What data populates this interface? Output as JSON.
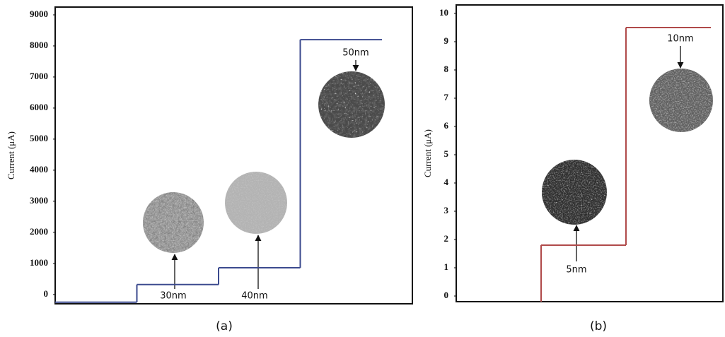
{
  "chart_data": [
    {
      "type": "step",
      "y_label": "Current (μA)",
      "caption": "(a)",
      "categories": [
        null,
        null,
        null,
        null
      ],
      "values": [
        -250,
        320,
        860,
        8200
      ],
      "color": "#3b4a8e",
      "ylim": [
        -300,
        9250
      ],
      "yticks": [
        0,
        1000,
        2000,
        3000,
        4000,
        5000,
        6000,
        7000,
        8000,
        9000
      ],
      "annotations": [
        "30nm",
        "40nm",
        "50nm"
      ]
    },
    {
      "type": "step",
      "y_label": "Current (μA)",
      "caption": "(b)",
      "categories": [
        null,
        null,
        null
      ],
      "values": [
        null,
        1.8,
        9.5
      ],
      "color": "#b04a4a",
      "ylim": [
        -0.2,
        10.3
      ],
      "yticks": [
        0,
        1,
        2,
        3,
        4,
        5,
        6,
        7,
        8,
        9,
        10
      ],
      "annotations": [
        "5nm",
        "10nm"
      ]
    }
  ]
}
